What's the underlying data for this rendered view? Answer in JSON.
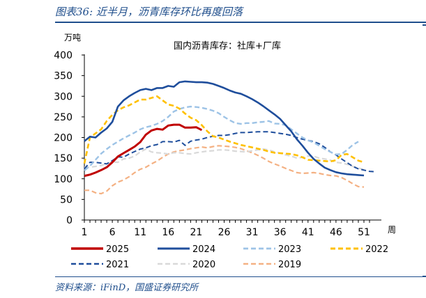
{
  "header": {
    "title": "图表36:  近半月，沥青库存环比再度回落"
  },
  "footer": {
    "source": "资料来源：iFinD，国盛证券研究所"
  },
  "chart_data": {
    "type": "line",
    "title": "国内沥青库存：社库+厂库",
    "ylabel": "万吨",
    "xlabel": "周",
    "ylim": [
      0,
      400
    ],
    "yticks": [
      0,
      50,
      100,
      150,
      200,
      250,
      300,
      350,
      400
    ],
    "xlim": [
      1,
      52
    ],
    "xticks": [
      1,
      6,
      11,
      16,
      21,
      26,
      31,
      36,
      41,
      46,
      51
    ],
    "series": [
      {
        "name": "2025",
        "color": "#c00000",
        "dash": "solid",
        "width": 3,
        "x": [
          1,
          2,
          3,
          4,
          5,
          6,
          7,
          8,
          9,
          10,
          11,
          12,
          13,
          14,
          15,
          16,
          17,
          18,
          19,
          20,
          21,
          22
        ],
        "values": [
          107,
          110,
          115,
          121,
          128,
          140,
          154,
          162,
          170,
          178,
          189,
          207,
          217,
          221,
          219,
          229,
          231,
          231,
          224,
          224,
          225,
          218
        ]
      },
      {
        "name": "2024",
        "color": "#1f4e9c",
        "dash": "solid",
        "width": 2.6,
        "x": [
          1,
          2,
          3,
          4,
          5,
          6,
          7,
          8,
          9,
          10,
          11,
          12,
          13,
          14,
          15,
          16,
          17,
          18,
          19,
          20,
          21,
          22,
          23,
          24,
          25,
          26,
          27,
          28,
          29,
          30,
          31,
          32,
          33,
          34,
          35,
          36,
          37,
          38,
          39,
          40,
          41,
          42,
          43,
          44,
          45,
          46,
          47,
          48,
          49,
          50,
          51
        ],
        "values": [
          191,
          202,
          200,
          212,
          222,
          238,
          275,
          290,
          300,
          308,
          315,
          318,
          315,
          320,
          320,
          325,
          323,
          334,
          336,
          335,
          334,
          334,
          333,
          330,
          325,
          320,
          314,
          309,
          306,
          300,
          293,
          285,
          276,
          266,
          256,
          245,
          230,
          215,
          196,
          180,
          163,
          148,
          137,
          127,
          121,
          116,
          113,
          111,
          110,
          109,
          108
        ]
      },
      {
        "name": "2023",
        "color": "#9dc3e6",
        "dash": "dash",
        "width": 2.4,
        "x": [
          1,
          2,
          3,
          4,
          5,
          6,
          7,
          8,
          9,
          10,
          11,
          12,
          13,
          14,
          15,
          16,
          17,
          18,
          19,
          20,
          21,
          22,
          23,
          24,
          25,
          26,
          27,
          28,
          29,
          30,
          31,
          32,
          33,
          34,
          35,
          36,
          37,
          38,
          39,
          40,
          41,
          42,
          43,
          44,
          45,
          46,
          47,
          48,
          49,
          50
        ],
        "values": [
          120,
          131,
          146,
          161,
          172,
          182,
          190,
          198,
          205,
          212,
          220,
          225,
          228,
          233,
          240,
          250,
          263,
          269,
          273,
          275,
          274,
          272,
          269,
          265,
          259,
          250,
          242,
          235,
          233,
          235,
          235,
          237,
          238,
          240,
          234,
          233,
          230,
          220,
          210,
          200,
          193,
          188,
          180,
          172,
          165,
          159,
          160,
          170,
          182,
          190
        ]
      },
      {
        "name": "2022",
        "color": "#ffc000",
        "dash": "dash",
        "width": 2.6,
        "x": [
          1,
          2,
          3,
          4,
          5,
          6,
          7,
          8,
          9,
          10,
          11,
          12,
          13,
          14,
          15,
          16,
          17,
          18,
          19,
          20,
          21,
          22,
          23,
          24,
          25,
          26,
          27,
          28,
          29,
          30,
          31,
          32,
          33,
          34,
          35,
          36,
          37,
          38,
          39,
          40,
          41,
          42,
          43,
          44,
          45,
          46,
          47,
          48,
          49,
          50,
          51
        ],
        "values": [
          137,
          200,
          210,
          220,
          240,
          255,
          266,
          273,
          278,
          285,
          292,
          292,
          296,
          300,
          290,
          280,
          277,
          270,
          258,
          248,
          242,
          230,
          215,
          203,
          200,
          195,
          190,
          186,
          182,
          179,
          176,
          173,
          170,
          166,
          163,
          162,
          161,
          160,
          157,
          152,
          146,
          145,
          144,
          143,
          142,
          145,
          158,
          160,
          152,
          144,
          140
        ]
      },
      {
        "name": "2021",
        "color": "#1f4e9c",
        "dash": "dash",
        "width": 2,
        "x": [
          1,
          2,
          3,
          4,
          5,
          6,
          7,
          8,
          9,
          10,
          11,
          12,
          13,
          14,
          15,
          16,
          17,
          18,
          19,
          20,
          21,
          22,
          23,
          24,
          25,
          26,
          27,
          28,
          29,
          30,
          31,
          32,
          33,
          34,
          35,
          36,
          37,
          38,
          39,
          40,
          41,
          42,
          43,
          44,
          45,
          46,
          47,
          48,
          49,
          50,
          51,
          52,
          53
        ],
        "values": [
          124,
          140,
          140,
          138,
          136,
          144,
          153,
          152,
          160,
          166,
          172,
          175,
          180,
          183,
          190,
          190,
          189,
          193,
          181,
          191,
          194,
          196,
          200,
          203,
          205,
          205,
          207,
          210,
          212,
          212,
          213,
          214,
          214,
          214,
          212,
          210,
          208,
          205,
          200,
          196,
          193,
          190,
          185,
          176,
          165,
          158,
          148,
          139,
          130,
          124,
          121,
          118,
          117
        ]
      },
      {
        "name": "2020",
        "color": "#d9d9d9",
        "dash": "dash",
        "width": 2.2,
        "x": [
          1,
          2,
          3,
          4,
          5,
          6,
          7,
          8,
          9,
          10,
          11,
          12,
          13,
          14,
          15,
          16,
          17,
          18,
          19,
          20,
          21,
          22,
          23,
          24,
          25,
          26,
          27,
          28,
          29,
          30,
          31,
          32,
          33,
          34,
          35,
          36,
          37,
          38,
          39,
          40,
          41,
          42,
          43,
          44,
          45,
          46,
          47,
          48,
          49,
          50,
          51
        ],
        "values": [
          128,
          128,
          130,
          132,
          137,
          141,
          140,
          148,
          150,
          155,
          165,
          172,
          165,
          163,
          162,
          160,
          163,
          163,
          161,
          160,
          163,
          165,
          167,
          168,
          170,
          170,
          169,
          167,
          166,
          165,
          168,
          170,
          172,
          170,
          165,
          162,
          158,
          155,
          150,
          152,
          155,
          155,
          150,
          148,
          145,
          140,
          138,
          135,
          130,
          126,
          122
        ]
      },
      {
        "name": "2019",
        "color": "#f4b183",
        "dash": "dash",
        "width": 2.2,
        "x": [
          1,
          2,
          3,
          4,
          5,
          6,
          7,
          8,
          9,
          10,
          11,
          12,
          13,
          14,
          15,
          16,
          17,
          18,
          19,
          20,
          21,
          22,
          23,
          24,
          25,
          26,
          27,
          28,
          29,
          30,
          31,
          32,
          33,
          34,
          35,
          36,
          37,
          38,
          39,
          40,
          41,
          42,
          43,
          44,
          45,
          46,
          47,
          48,
          49,
          50,
          51
        ],
        "values": [
          72,
          72,
          66,
          64,
          70,
          83,
          92,
          97,
          105,
          115,
          123,
          128,
          136,
          143,
          152,
          160,
          165,
          168,
          170,
          173,
          175,
          177,
          175,
          178,
          180,
          179,
          178,
          176,
          173,
          168,
          163,
          157,
          150,
          142,
          136,
          131,
          125,
          120,
          115,
          113,
          114,
          115,
          113,
          110,
          108,
          107,
          103,
          96,
          88,
          81,
          80
        ]
      }
    ]
  }
}
